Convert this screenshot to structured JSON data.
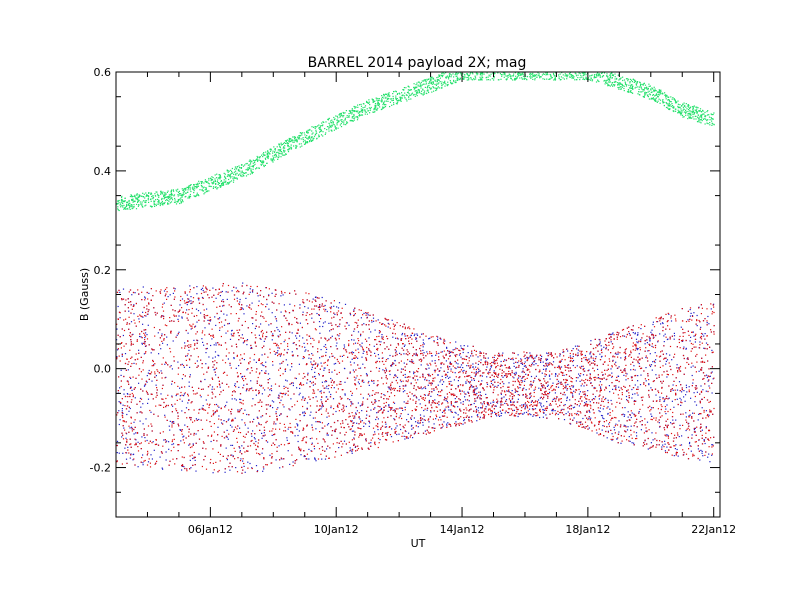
{
  "chart_data": {
    "type": "scatter",
    "title": "BARREL 2014 payload 2X; mag",
    "xlabel": "UT",
    "ylabel": "B (Gauss)",
    "xlim": [
      "2012-01-03",
      "2012-01-22"
    ],
    "ylim": [
      -0.3,
      0.6
    ],
    "x_tick_labels": [
      "06Jan12",
      "10Jan12",
      "14Jan12",
      "18Jan12",
      "22Jan12"
    ],
    "y_tick_labels": [
      "-0.2",
      "0.0",
      "0.2",
      "0.4",
      "0.6"
    ],
    "y_tick_values": [
      -0.2,
      0.0,
      0.2,
      0.4,
      0.6
    ],
    "grid": false,
    "series": [
      {
        "color": "#22e06a",
        "kind": "band",
        "x": [
          "2012-01-03",
          "2012-01-05",
          "2012-01-07",
          "2012-01-09",
          "2012-01-11",
          "2012-01-13",
          "2012-01-14",
          "2012-01-18",
          "2012-01-20",
          "2012-01-21",
          "2012-01-22"
        ],
        "center": [
          0.335,
          0.35,
          0.4,
          0.47,
          0.53,
          0.575,
          0.6,
          0.6,
          0.56,
          0.525,
          0.505
        ],
        "half_width": [
          0.015,
          0.015,
          0.015,
          0.015,
          0.015,
          0.015,
          0.015,
          0.015,
          0.015,
          0.015,
          0.015
        ]
      },
      {
        "color": "#2020c8",
        "kind": "envelope",
        "x": [
          "2012-01-03",
          "2012-01-05",
          "2012-01-07",
          "2012-01-09",
          "2012-01-11",
          "2012-01-13",
          "2012-01-15",
          "2012-01-17",
          "2012-01-19",
          "2012-01-21",
          "2012-01-22"
        ],
        "upper": [
          0.165,
          0.17,
          0.175,
          0.155,
          0.12,
          0.07,
          0.035,
          0.035,
          0.08,
          0.125,
          0.135
        ],
        "lower": [
          -0.195,
          -0.205,
          -0.215,
          -0.19,
          -0.165,
          -0.13,
          -0.095,
          -0.1,
          -0.15,
          -0.18,
          -0.19
        ]
      },
      {
        "color": "#e01010",
        "kind": "envelope",
        "x": [
          "2012-01-03",
          "2012-01-05",
          "2012-01-07",
          "2012-01-09",
          "2012-01-11",
          "2012-01-13",
          "2012-01-15",
          "2012-01-17",
          "2012-01-19",
          "2012-01-21",
          "2012-01-22"
        ],
        "upper": [
          0.165,
          0.17,
          0.175,
          0.155,
          0.12,
          0.07,
          0.035,
          0.035,
          0.08,
          0.125,
          0.135
        ],
        "lower": [
          -0.195,
          -0.205,
          -0.215,
          -0.19,
          -0.165,
          -0.13,
          -0.095,
          -0.1,
          -0.15,
          -0.18,
          -0.19
        ]
      }
    ]
  }
}
